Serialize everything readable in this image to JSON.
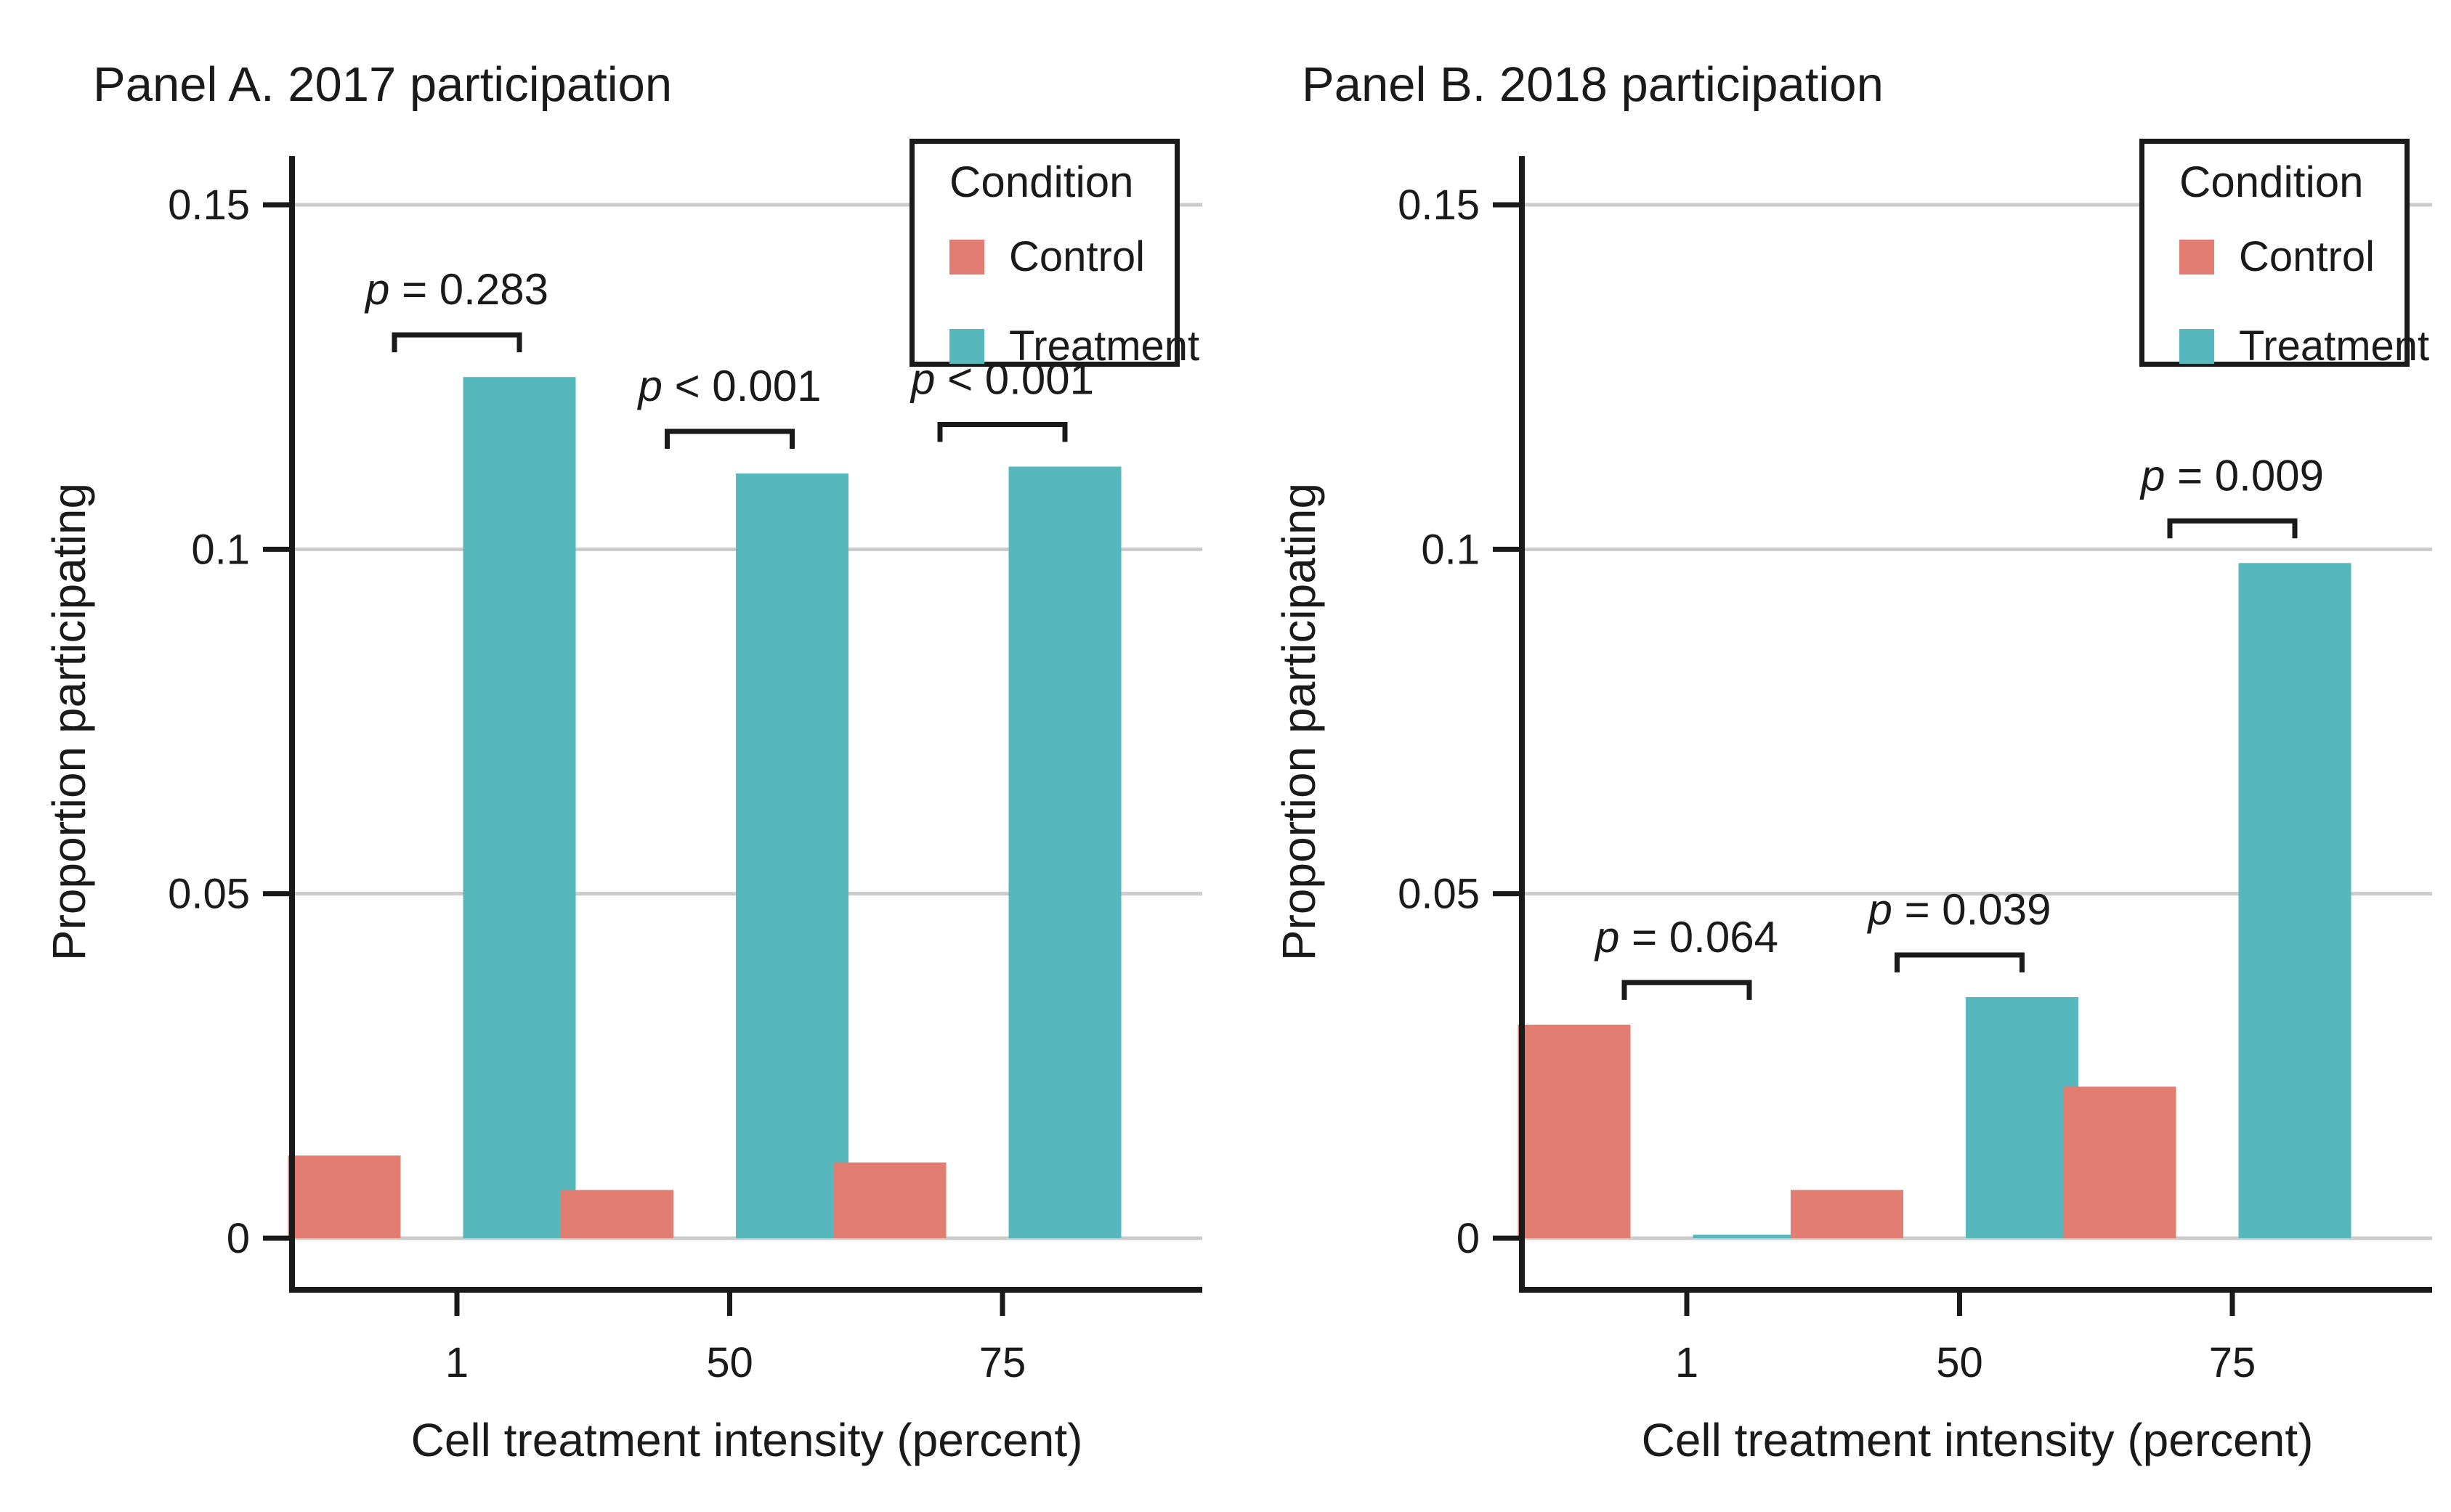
{
  "page": {
    "background": "#ffffff",
    "ink_color": "#1a1a1a",
    "grid_color": "#cbcbcb"
  },
  "legend": {
    "title": "Condition",
    "items": [
      {
        "label": "Control",
        "color": "#e27d71"
      },
      {
        "label": "Treatment",
        "color": "#56b7bc"
      }
    ]
  },
  "chart_data": [
    {
      "type": "bar",
      "panel": "A",
      "title": "Panel A. 2017 participation",
      "xlabel": "Cell treatment intensity (percent)",
      "ylabel": "Proportion participating",
      "categories": [
        "1",
        "50",
        "75"
      ],
      "series": [
        {
          "name": "Control",
          "color": "#e27d71",
          "values": [
            0.012,
            0.007,
            0.011
          ]
        },
        {
          "name": "Treatment",
          "color": "#56b7bc",
          "values": [
            0.125,
            0.111,
            0.112
          ]
        }
      ],
      "p_values": [
        "p = 0.283",
        "p < 0.001",
        "p < 0.001"
      ],
      "yticks": [
        0,
        0.05,
        0.1,
        0.15
      ],
      "ytick_labels": [
        "0",
        "0.05",
        "0.1",
        "0.15"
      ],
      "ylim": [
        0,
        0.157
      ],
      "grid": true,
      "legend_position": "top-right"
    },
    {
      "type": "bar",
      "panel": "B",
      "title": "Panel B. 2018 participation",
      "xlabel": "Cell treatment intensity (percent)",
      "ylabel": "Proportion participating",
      "categories": [
        "1",
        "50",
        "75"
      ],
      "series": [
        {
          "name": "Control",
          "color": "#e27d71",
          "values": [
            0.031,
            0.007,
            0.022
          ]
        },
        {
          "name": "Treatment",
          "color": "#56b7bc",
          "values": [
            0.0005,
            0.035,
            0.098
          ]
        }
      ],
      "p_values": [
        "p = 0.064",
        "p = 0.039",
        "p = 0.009"
      ],
      "yticks": [
        0,
        0.05,
        0.1,
        0.15
      ],
      "ytick_labels": [
        "0",
        "0.05",
        "0.1",
        "0.15"
      ],
      "ylim": [
        0,
        0.157
      ],
      "grid": true,
      "legend_position": "top-right"
    }
  ]
}
